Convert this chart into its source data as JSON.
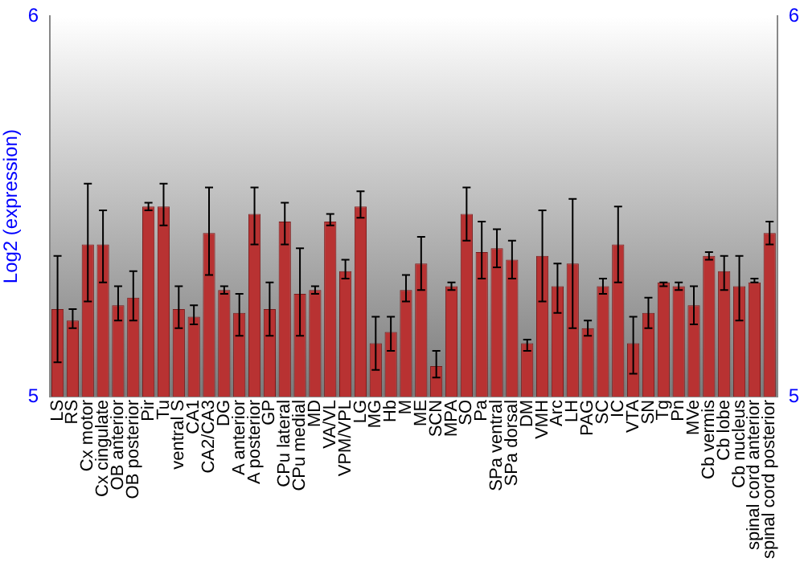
{
  "chart_data": {
    "type": "bar",
    "ylabel": "Log2 (expression)",
    "categories": [
      "LS",
      "RS",
      "Cx motor",
      "Cx cingulate",
      "OB anterior",
      "OB posterior",
      "Pir",
      "Tu",
      "ventral S",
      "CA1",
      "CA2/CA3",
      "DG",
      "A anterior",
      "A posterior",
      "GP",
      "CPu lateral",
      "CPu medial",
      "MD",
      "VA/VL",
      "VPM/VPL",
      "LG",
      "MG",
      "Hb",
      "M",
      "ME",
      "SCN",
      "MPA",
      "SO",
      "Pa",
      "SPa ventral",
      "SPa dorsal",
      "DM",
      "VMH",
      "Arc",
      "LH",
      "PAG",
      "SC",
      "IC",
      "VTA",
      "SN",
      "Tg",
      "Pn",
      "MVe",
      "Cb vermis",
      "Cb lobe",
      "Cb nucleus",
      "spinal cord anterior",
      "spinal cord posterior"
    ],
    "values": [
      5.23,
      5.2,
      5.4,
      5.4,
      5.24,
      5.26,
      5.5,
      5.5,
      5.23,
      5.21,
      5.43,
      5.28,
      5.22,
      5.48,
      5.23,
      5.46,
      5.27,
      5.28,
      5.46,
      5.33,
      5.5,
      5.14,
      5.17,
      5.28,
      5.35,
      5.08,
      5.29,
      5.48,
      5.38,
      5.39,
      5.36,
      5.14,
      5.37,
      5.29,
      5.35,
      5.18,
      5.29,
      5.4,
      5.14,
      5.22,
      5.3,
      5.29,
      5.24,
      5.37,
      5.33,
      5.29,
      5.3,
      5.43
    ],
    "errors": [
      [
        5.09,
        5.37
      ],
      [
        5.18,
        5.23
      ],
      [
        5.25,
        5.56
      ],
      [
        5.3,
        5.49
      ],
      [
        5.2,
        5.29
      ],
      [
        5.2,
        5.33
      ],
      [
        5.49,
        5.51
      ],
      [
        5.45,
        5.56
      ],
      [
        5.18,
        5.29
      ],
      [
        5.19,
        5.24
      ],
      [
        5.32,
        5.55
      ],
      [
        5.27,
        5.29
      ],
      [
        5.16,
        5.27
      ],
      [
        5.4,
        5.55
      ],
      [
        5.16,
        5.3
      ],
      [
        5.4,
        5.51
      ],
      [
        5.16,
        5.39
      ],
      [
        5.27,
        5.29
      ],
      [
        5.45,
        5.48
      ],
      [
        5.31,
        5.36
      ],
      [
        5.47,
        5.54
      ],
      [
        5.07,
        5.21
      ],
      [
        5.12,
        5.21
      ],
      [
        5.25,
        5.32
      ],
      [
        5.28,
        5.42
      ],
      [
        5.05,
        5.12
      ],
      [
        5.28,
        5.3
      ],
      [
        5.41,
        5.55
      ],
      [
        5.31,
        5.46
      ],
      [
        5.34,
        5.44
      ],
      [
        5.31,
        5.41
      ],
      [
        5.12,
        5.15
      ],
      [
        5.25,
        5.49
      ],
      [
        5.22,
        5.35
      ],
      [
        5.18,
        5.52
      ],
      [
        5.16,
        5.2
      ],
      [
        5.27,
        5.31
      ],
      [
        5.3,
        5.5
      ],
      [
        5.06,
        5.21
      ],
      [
        5.18,
        5.26
      ],
      [
        5.29,
        5.3
      ],
      [
        5.28,
        5.3
      ],
      [
        5.19,
        5.29
      ],
      [
        5.36,
        5.38
      ],
      [
        5.28,
        5.37
      ],
      [
        5.2,
        5.37
      ],
      [
        5.3,
        5.31
      ],
      [
        5.4,
        5.46
      ]
    ],
    "color": "#b83232",
    "ylim": [
      5,
      6
    ],
    "yticks": [
      5,
      6
    ],
    "y2lim": [
      5,
      6
    ],
    "y2ticks": [
      5,
      6
    ]
  }
}
